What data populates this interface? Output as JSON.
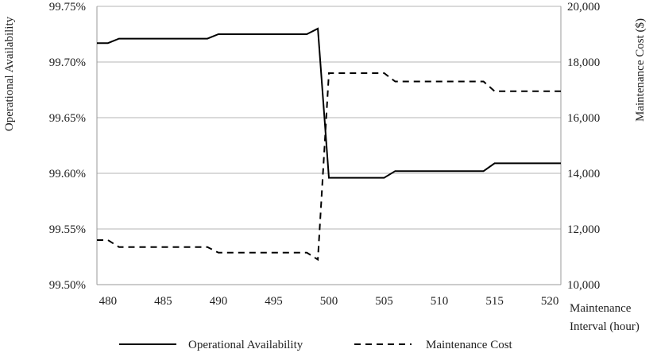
{
  "chart_data": {
    "type": "line",
    "title": "",
    "xlabel_lines": [
      "Maintenance",
      "Interval (hour)"
    ],
    "ylabel_left": "Operational Availability",
    "ylabel_right": "Maintenance Cost ($)",
    "x_ticks": [
      480,
      485,
      490,
      495,
      500,
      505,
      510,
      515,
      520
    ],
    "xlim": [
      479,
      521
    ],
    "y_left_ticks": [
      "99.50%",
      "99.55%",
      "99.60%",
      "99.65%",
      "99.70%",
      "99.75%"
    ],
    "y_left_tick_values": [
      99.5,
      99.55,
      99.6,
      99.65,
      99.7,
      99.75
    ],
    "y_left_lim": [
      99.5,
      99.75
    ],
    "y_right_ticks": [
      "10,000",
      "12,000",
      "14,000",
      "16,000",
      "18,000",
      "20,000"
    ],
    "y_right_tick_values": [
      10000,
      12000,
      14000,
      16000,
      18000,
      20000
    ],
    "y_right_lim": [
      10000,
      20000
    ],
    "grid": "horizontal",
    "legend_position": "bottom",
    "series": [
      {
        "name": "Operational Availability",
        "axis": "left",
        "line_style": "solid",
        "color": "#000000",
        "points": [
          [
            479,
            99.717
          ],
          [
            480,
            99.717
          ],
          [
            481,
            99.721
          ],
          [
            482,
            99.721
          ],
          [
            483,
            99.721
          ],
          [
            484,
            99.721
          ],
          [
            485,
            99.721
          ],
          [
            486,
            99.721
          ],
          [
            487,
            99.721
          ],
          [
            488,
            99.721
          ],
          [
            489,
            99.721
          ],
          [
            490,
            99.725
          ],
          [
            491,
            99.725
          ],
          [
            492,
            99.725
          ],
          [
            493,
            99.725
          ],
          [
            494,
            99.725
          ],
          [
            495,
            99.725
          ],
          [
            496,
            99.725
          ],
          [
            497,
            99.725
          ],
          [
            498,
            99.725
          ],
          [
            499,
            99.73
          ],
          [
            500,
            99.596
          ],
          [
            501,
            99.596
          ],
          [
            502,
            99.596
          ],
          [
            503,
            99.596
          ],
          [
            504,
            99.596
          ],
          [
            505,
            99.596
          ],
          [
            506,
            99.602
          ],
          [
            507,
            99.602
          ],
          [
            508,
            99.602
          ],
          [
            509,
            99.602
          ],
          [
            510,
            99.602
          ],
          [
            511,
            99.602
          ],
          [
            512,
            99.602
          ],
          [
            513,
            99.602
          ],
          [
            514,
            99.602
          ],
          [
            515,
            99.609
          ],
          [
            516,
            99.609
          ],
          [
            517,
            99.609
          ],
          [
            518,
            99.609
          ],
          [
            519,
            99.609
          ],
          [
            520,
            99.609
          ],
          [
            521,
            99.609
          ]
        ]
      },
      {
        "name": "Maintenance Cost",
        "axis": "right",
        "line_style": "dashed",
        "color": "#000000",
        "points": [
          [
            479,
            11600
          ],
          [
            480,
            11600
          ],
          [
            481,
            11350
          ],
          [
            482,
            11350
          ],
          [
            483,
            11350
          ],
          [
            484,
            11350
          ],
          [
            485,
            11350
          ],
          [
            486,
            11350
          ],
          [
            487,
            11350
          ],
          [
            488,
            11350
          ],
          [
            489,
            11350
          ],
          [
            490,
            11150
          ],
          [
            491,
            11150
          ],
          [
            492,
            11150
          ],
          [
            493,
            11150
          ],
          [
            494,
            11150
          ],
          [
            495,
            11150
          ],
          [
            496,
            11150
          ],
          [
            497,
            11150
          ],
          [
            498,
            11150
          ],
          [
            499,
            10900
          ],
          [
            500,
            17600
          ],
          [
            501,
            17600
          ],
          [
            502,
            17600
          ],
          [
            503,
            17600
          ],
          [
            504,
            17600
          ],
          [
            505,
            17600
          ],
          [
            506,
            17300
          ],
          [
            507,
            17300
          ],
          [
            508,
            17300
          ],
          [
            509,
            17300
          ],
          [
            510,
            17300
          ],
          [
            511,
            17300
          ],
          [
            512,
            17300
          ],
          [
            513,
            17300
          ],
          [
            514,
            17300
          ],
          [
            515,
            16950
          ],
          [
            516,
            16950
          ],
          [
            517,
            16950
          ],
          [
            518,
            16950
          ],
          [
            519,
            16950
          ],
          [
            520,
            16950
          ],
          [
            521,
            16950
          ]
        ]
      }
    ]
  }
}
